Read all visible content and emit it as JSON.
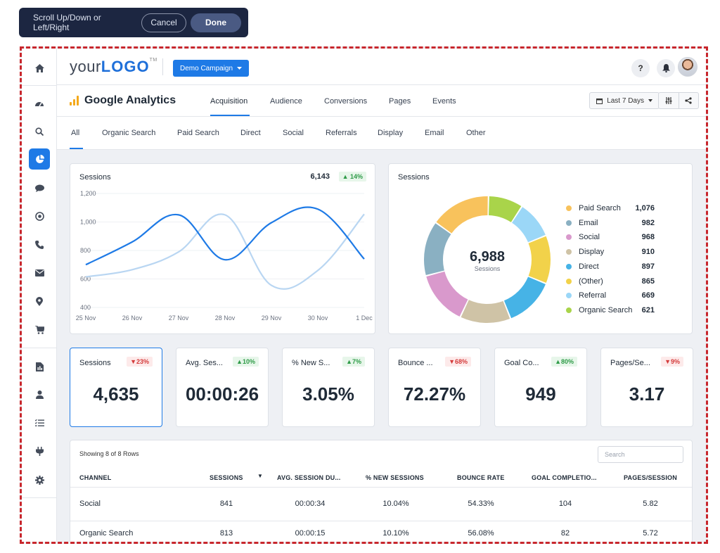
{
  "scroll_toolbar": {
    "message": "Scroll Up/Down or Left/Right",
    "cancel": "Cancel",
    "done": "Done"
  },
  "header": {
    "logo_prefix": "your",
    "logo_bold": "LOGO",
    "logo_tm": "TM",
    "campaign": "Demo Campaign",
    "help": "?"
  },
  "sidebar_icons": [
    "home-icon",
    "gauge-icon",
    "search-icon",
    "pie-chart-icon",
    "chat-icon",
    "target-icon",
    "phone-icon",
    "mail-icon",
    "location-pin-icon",
    "cart-icon",
    "report-icon",
    "user-icon",
    "list-icon",
    "plug-icon",
    "gear-icon"
  ],
  "analytics": {
    "title": "Google Analytics",
    "tabs": [
      "Acquisition",
      "Audience",
      "Conversions",
      "Pages",
      "Events"
    ],
    "date_range": "Last 7 Days"
  },
  "channels": [
    "All",
    "Organic Search",
    "Paid Search",
    "Direct",
    "Social",
    "Referrals",
    "Display",
    "Email",
    "Other"
  ],
  "line_card": {
    "title": "Sessions",
    "total": "6,143",
    "change": "14%",
    "chart_data": {
      "type": "line",
      "x": [
        "25 Nov",
        "26 Nov",
        "27 Nov",
        "28 Nov",
        "29 Nov",
        "30 Nov",
        "1 Dec"
      ],
      "yticks": [
        "1,200",
        "1,000",
        "800",
        "600",
        "400"
      ],
      "ylim": [
        400,
        1200
      ],
      "series": [
        {
          "values": [
            700,
            860,
            1050,
            735,
            995,
            1090,
            740
          ],
          "color": "#1e7ae6"
        },
        {
          "values": [
            615,
            665,
            790,
            1050,
            555,
            660,
            1055
          ],
          "color": "#b9d6f2"
        }
      ]
    }
  },
  "donut_card": {
    "title": "Sessions",
    "center_value": "6,988",
    "center_label": "Sessions",
    "chart_data": {
      "type": "pie",
      "labels": [
        "Paid Search",
        "Email",
        "Social",
        "Display",
        "Direct",
        "(Other)",
        "Referral",
        "Organic Search"
      ],
      "values": [
        1076,
        982,
        968,
        910,
        897,
        865,
        669,
        621
      ],
      "display_values": [
        "1,076",
        "982",
        "968",
        "910",
        "897",
        "865",
        "669",
        "621"
      ],
      "colors": [
        "#f8c25c",
        "#8ab0c2",
        "#d999cc",
        "#cfc3a6",
        "#46b3e6",
        "#f2d24a",
        "#9bd7f7",
        "#a9d44a"
      ],
      "clockwise_order": [
        "Organic Search",
        "Referral",
        "(Other)",
        "Direct",
        "Display",
        "Social",
        "Email",
        "Paid Search"
      ]
    }
  },
  "kpis": [
    {
      "label": "Sessions",
      "change": "23%",
      "dir": "down",
      "value": "4,635"
    },
    {
      "label": "Avg. Ses...",
      "change": "10%",
      "dir": "up",
      "value": "00:00:26"
    },
    {
      "label": "% New S...",
      "change": "7%",
      "dir": "up",
      "value": "3.05%"
    },
    {
      "label": "Bounce ...",
      "change": "68%",
      "dir": "down",
      "value": "72.27%"
    },
    {
      "label": "Goal Co...",
      "change": "80%",
      "dir": "up",
      "value": "949"
    },
    {
      "label": "Pages/Se...",
      "change": "9%",
      "dir": "down",
      "value": "3.17"
    }
  ],
  "table": {
    "rows_info": "Showing 8 of 8 Rows",
    "search_placeholder": "Search",
    "columns": [
      "Channel",
      "Sessions",
      "Avg. Session Du...",
      "% New Sessions",
      "Bounce Rate",
      "Goal Completio...",
      "Pages/Session"
    ],
    "rows": [
      [
        "Social",
        "841",
        "00:00:34",
        "10.04%",
        "54.33%",
        "104",
        "5.82"
      ],
      [
        "Organic Search",
        "813",
        "00:00:15",
        "10.10%",
        "56.08%",
        "82",
        "5.72"
      ]
    ]
  }
}
